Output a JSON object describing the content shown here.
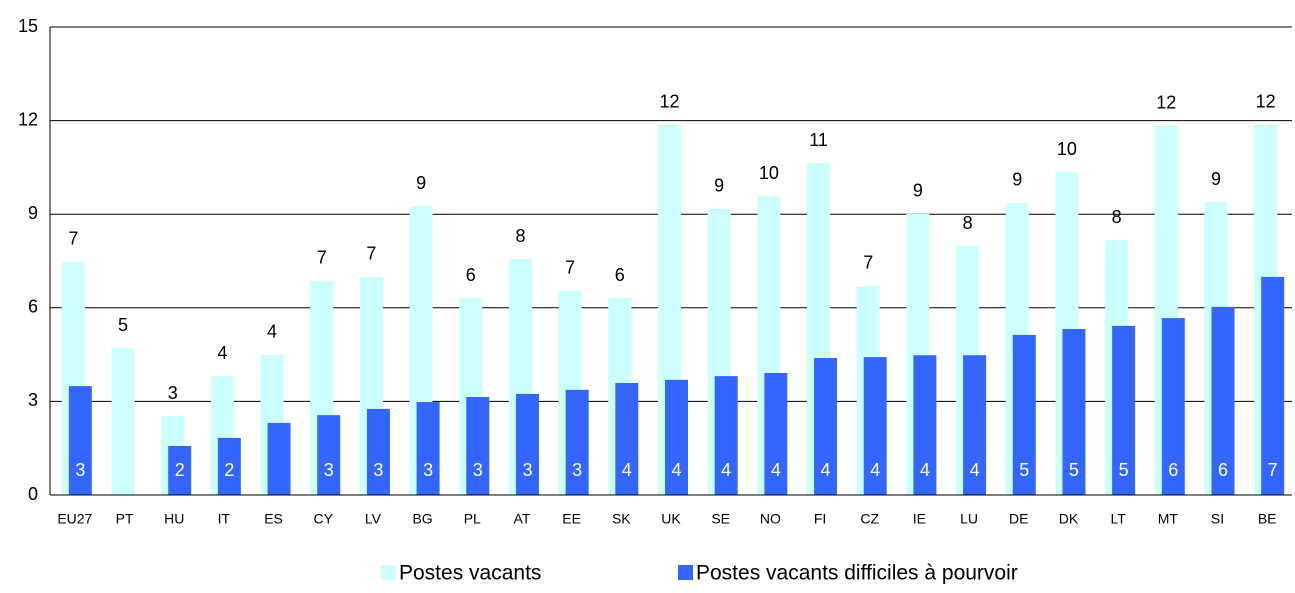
{
  "chart_data": {
    "type": "bar",
    "categories": [
      "EU27",
      "PT",
      "HU",
      "IT",
      "ES",
      "CY",
      "LV",
      "BG",
      "PL",
      "AT",
      "EE",
      "SK",
      "UK",
      "SE",
      "NO",
      "FI",
      "CZ",
      "IE",
      "LU",
      "DE",
      "DK",
      "LT",
      "MT",
      "SI",
      "BE"
    ],
    "series": [
      {
        "name": "Postes vacants",
        "color": "#ccffff",
        "values": [
          7.47,
          4.71,
          2.53,
          3.81,
          4.49,
          6.86,
          6.99,
          9.26,
          6.31,
          7.56,
          6.54,
          6.31,
          11.86,
          9.17,
          9.58,
          10.64,
          6.7,
          9.01,
          7.98,
          9.36,
          10.35,
          8.17,
          11.83,
          9.39,
          11.86
        ],
        "value_labels": [
          "7",
          "5",
          "3",
          "4",
          "4",
          "7",
          "7",
          "9",
          "6",
          "8",
          "7",
          "6",
          "12",
          "9",
          "10",
          "11",
          "7",
          "9",
          "8",
          "9",
          "10",
          "8",
          "12",
          "9",
          "12"
        ]
      },
      {
        "name": "Postes vacants difficiles à pourvoir",
        "color": "#3366ff",
        "values": [
          3.49,
          null,
          1.57,
          1.83,
          2.31,
          2.56,
          2.76,
          2.98,
          3.14,
          3.24,
          3.37,
          3.59,
          3.69,
          3.81,
          3.91,
          4.39,
          4.42,
          4.48,
          4.48,
          5.13,
          5.32,
          5.42,
          5.67,
          6.03,
          6.99
        ],
        "value_labels": [
          "3",
          null,
          "2",
          "2",
          null,
          "3",
          "3",
          "3",
          "3",
          "3",
          "3",
          "4",
          "4",
          "4",
          "4",
          "4",
          "4",
          "4",
          "4",
          "5",
          "5",
          "5",
          "6",
          "6",
          "7"
        ]
      }
    ],
    "ylim": [
      0,
      15
    ],
    "yticks": [
      0,
      3,
      6,
      9,
      12,
      15
    ],
    "grid": true,
    "legend": "bottom"
  }
}
